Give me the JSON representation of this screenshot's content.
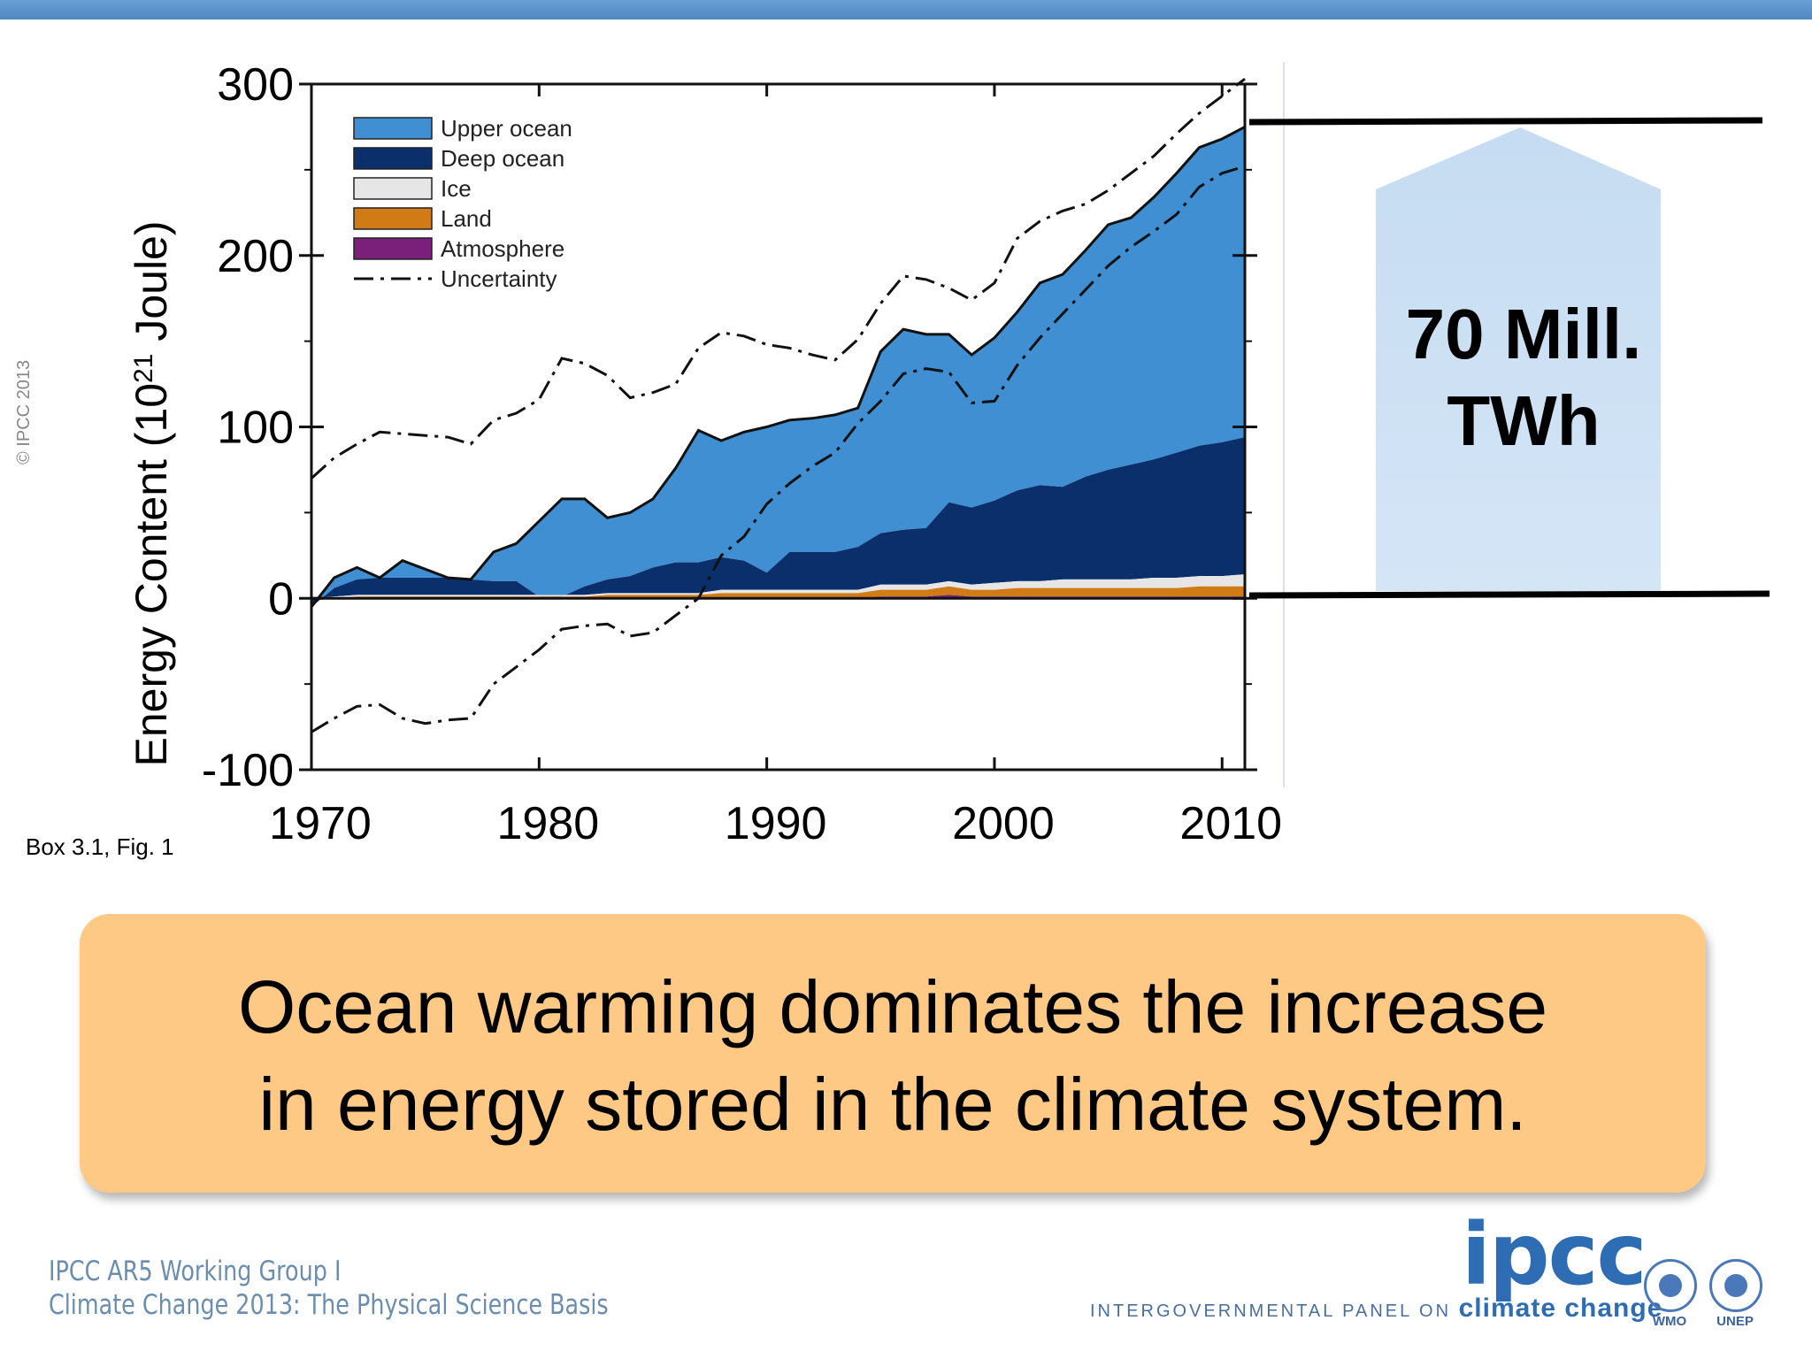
{
  "copyright": "© IPCC 2013",
  "figure_ref": "Box 3.1, Fig. 1",
  "arrow_label": "70 Mill. TWh",
  "callout": {
    "line1": "Ocean warming dominates the increase",
    "line2": "in energy stored in the climate system."
  },
  "footer": {
    "line1": "IPCC AR5 Working Group I",
    "line2": "Climate Change 2013: The Physical Science Basis"
  },
  "ipcc_logo": {
    "acronym": "ipcc",
    "full_prefix": "INTERGOVERNMENTAL PANEL ON",
    "full_suffix": "climate change"
  },
  "partners": [
    "WMO",
    "UNEP"
  ],
  "colors": {
    "upper_ocean": "#3f8fd2",
    "deep_ocean": "#0b2f6b",
    "ice": "#e6e6e6",
    "land": "#d07b16",
    "atmosphere": "#7a1f7a",
    "arrow_fill": "#c6dcf2",
    "callout_fill": "#fdc985",
    "top_bar": "#5b91cc"
  },
  "chart_data": {
    "type": "area",
    "stacked": true,
    "xlabel": "",
    "ylabel": "Energy Content (10²¹ Joule)",
    "ylabel_base": "Energy Content (10",
    "ylabel_exp": "21",
    "ylabel_unit": " Joule)",
    "xlim": [
      1970,
      2011
    ],
    "ylim": [
      -100,
      300
    ],
    "xticks": [
      1970,
      1980,
      1990,
      2000,
      2010
    ],
    "yticks": [
      -100,
      0,
      100,
      200,
      300
    ],
    "legend_position": "top-left",
    "x": [
      1970,
      1971,
      1972,
      1973,
      1974,
      1975,
      1976,
      1977,
      1978,
      1979,
      1980,
      1981,
      1982,
      1983,
      1984,
      1985,
      1986,
      1987,
      1988,
      1989,
      1990,
      1991,
      1992,
      1993,
      1994,
      1995,
      1996,
      1997,
      1998,
      1999,
      2000,
      2001,
      2002,
      2003,
      2004,
      2005,
      2006,
      2007,
      2008,
      2009,
      2010,
      2011
    ],
    "series": [
      {
        "name": "Atmosphere",
        "values": [
          0,
          0,
          0,
          0,
          0,
          0,
          0,
          0,
          0,
          0,
          0,
          0,
          0,
          0,
          0,
          0,
          0,
          0,
          0,
          0,
          0,
          0,
          0,
          0,
          0,
          1,
          1,
          1,
          2,
          1,
          1,
          1,
          1,
          1,
          1,
          1,
          1,
          1,
          1,
          1,
          1,
          1
        ]
      },
      {
        "name": "Land",
        "values": [
          0,
          0,
          1,
          1,
          1,
          1,
          1,
          1,
          1,
          1,
          1,
          1,
          1,
          2,
          2,
          2,
          2,
          2,
          3,
          3,
          3,
          3,
          3,
          3,
          3,
          4,
          4,
          4,
          5,
          4,
          4,
          5,
          5,
          5,
          5,
          5,
          5,
          5,
          5,
          6,
          6,
          6
        ]
      },
      {
        "name": "Ice",
        "values": [
          0,
          1,
          1,
          1,
          1,
          1,
          1,
          1,
          1,
          1,
          1,
          1,
          1,
          1,
          1,
          1,
          1,
          1,
          2,
          2,
          2,
          2,
          2,
          2,
          2,
          3,
          3,
          3,
          3,
          3,
          4,
          4,
          4,
          5,
          5,
          5,
          5,
          6,
          6,
          6,
          6,
          7
        ]
      },
      {
        "name": "Deep ocean",
        "values": [
          -5,
          5,
          9,
          10,
          10,
          10,
          10,
          9,
          8,
          8,
          -1,
          -1,
          5,
          8,
          10,
          15,
          18,
          18,
          19,
          17,
          10,
          22,
          22,
          22,
          25,
          30,
          32,
          33,
          46,
          45,
          48,
          53,
          56,
          54,
          60,
          64,
          67,
          69,
          73,
          76,
          78,
          80
        ]
      },
      {
        "name": "Upper ocean",
        "values": [
          0,
          6,
          7,
          0,
          10,
          5,
          0,
          0,
          17,
          22,
          44,
          57,
          51,
          36,
          37,
          40,
          55,
          77,
          68,
          75,
          85,
          77,
          78,
          80,
          81,
          106,
          117,
          113,
          98,
          89,
          95,
          104,
          118,
          124,
          132,
          143,
          144,
          153,
          163,
          174,
          177,
          181
        ]
      }
    ],
    "uncertainty_upper": [
      70,
      82,
      90,
      97,
      96,
      95,
      94,
      90,
      104,
      108,
      116,
      140,
      137,
      130,
      117,
      120,
      125,
      146,
      155,
      153,
      148,
      146,
      142,
      139,
      151,
      172,
      188,
      186,
      181,
      174,
      184,
      210,
      220,
      226,
      230,
      238,
      248,
      258,
      271,
      283,
      293,
      303
    ],
    "uncertainty_lower": [
      -78,
      -70,
      -63,
      -62,
      -70,
      -73,
      -71,
      -70,
      -50,
      -40,
      -30,
      -18,
      -16,
      -15,
      -22,
      -20,
      -10,
      0,
      25,
      36,
      55,
      67,
      77,
      85,
      102,
      115,
      131,
      134,
      132,
      114,
      115,
      136,
      152,
      166,
      180,
      194,
      205,
      214,
      224,
      240,
      248,
      252
    ],
    "uncertainty_name": "Uncertainty"
  }
}
